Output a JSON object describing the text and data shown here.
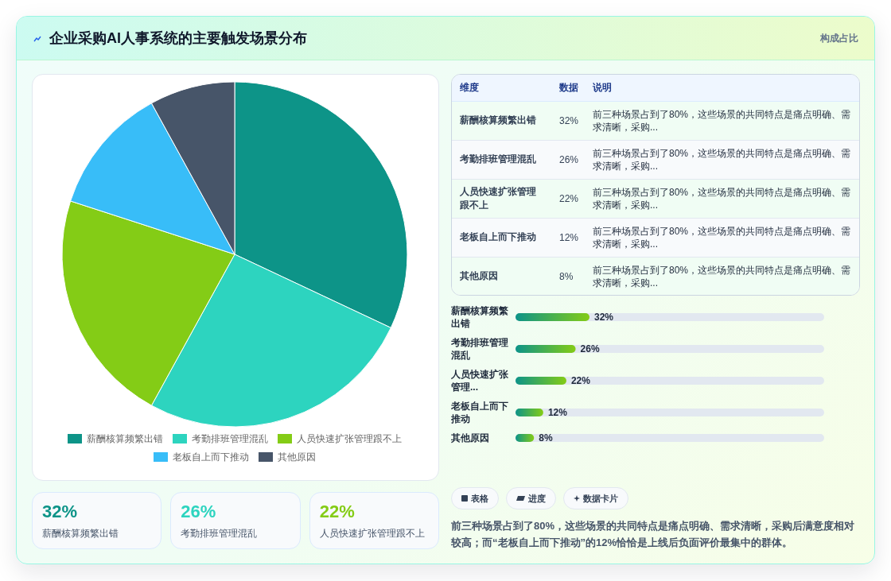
{
  "chart_data": [
    {
      "type": "other",
      "title": "企业采购AI人事系统的主要触发场景分布",
      "subtitle": "构成占比"
    },
    {
      "type": "pie",
      "categories": [
        "薪酬核算频繁出错",
        "考勤排班管理混乱",
        "人员快速扩张管理跟不上",
        "老板自上而下推动",
        "其他原因"
      ],
      "values": [
        32,
        26,
        22,
        12,
        8
      ],
      "colors": [
        "#0d9488",
        "#2dd4bf",
        "#84cc16",
        "#38bdf8",
        "#475569"
      ],
      "legend": "bottom"
    },
    {
      "type": "other",
      "categories": [
        "薪酬核算频繁出错",
        "考勤排班管理混乱",
        "人员快速扩张管理跟不上",
        "老板自上而下推动",
        "其他原因"
      ],
      "value_labels": [
        "32%",
        "26%",
        "22%",
        "12%",
        "8%"
      ],
      "annotations": [
        "维度",
        "数据",
        "说明",
        "前三种场景占到了80%，这些场景的共同特点是痛点明确、需求清晰，采购...",
        "前三种场景占到了80%，这些场景的共同特点是痛点明确、需求清晰，采购...",
        "前三种场景占到了80%，这些场景的共同特点是痛点明确、需求清晰，采购...",
        "前三种场景占到了80%，这些场景的共同特点是痛点明确、需求清晰，采购...",
        "前三种场景占到了80%，这些场景的共同特点是痛点明确、需求清晰，采购..."
      ]
    },
    {
      "type": "bar",
      "orientation": "horizontal",
      "categories": [
        "薪酬核算频繁出错",
        "考勤排班管理混乱",
        "人员快速扩张管理...",
        "老板自上而下推动",
        "其他原因"
      ],
      "values": [
        32,
        26,
        22,
        12,
        8
      ],
      "value_labels": [
        "32%",
        "26%",
        "22%",
        "12%",
        "8%"
      ],
      "color": "#0d9488",
      "tick_labels": "y"
    },
    {
      "type": "other",
      "categories": [
        "薪酬核算频繁出错",
        "考勤排班管理混乱",
        "人员快速扩张管理跟不上"
      ],
      "value_labels": [
        "32%",
        "26%",
        "22%"
      ],
      "colors": [
        "#0d9488",
        "#2dd4bf",
        "#84cc16"
      ]
    },
    {
      "type": "other",
      "annotations": [
        "表格",
        "进度",
        "数据卡片",
        "前三种场景占到了80%，这些场景的共同特点是痛点明确、需求清晰，采购后满意度相对较高；而“老板自上而下推动”的12%恰恰是上线后负面评价最集中的群体。"
      ]
    }
  ]
}
